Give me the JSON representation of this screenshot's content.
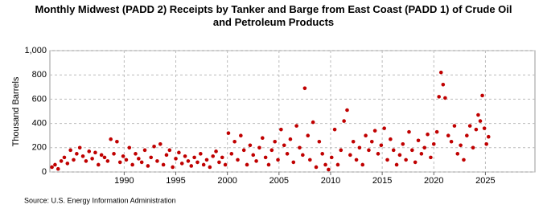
{
  "chart_data": {
    "type": "scatter",
    "title": "Monthly Midwest (PADD 2) Receipts by Tanker and Barge from East Coast (PADD 1) of Crude Oil and Petroleum Products",
    "y_label": "Thousand Barrels",
    "source": "Source: U.S. Energy Information Administration",
    "color": "#c00000",
    "grid": true,
    "xlim": [
      1982.8,
      2029.8
    ],
    "xticks": [
      1990,
      1995,
      2000,
      2005,
      2010,
      2015,
      2020,
      2025
    ],
    "ylim": [
      0,
      1000
    ],
    "yticks": [
      0,
      200,
      400,
      600,
      800,
      {
        "value": 1000,
        "label": "1,000"
      }
    ],
    "x": [
      1983.0,
      1983.3,
      1983.6,
      1983.9,
      1984.2,
      1984.5,
      1984.8,
      1985.1,
      1985.4,
      1985.7,
      1986.0,
      1986.3,
      1986.6,
      1986.9,
      1987.2,
      1987.5,
      1987.8,
      1988.1,
      1988.4,
      1988.7,
      1989.0,
      1989.3,
      1989.6,
      1989.9,
      1990.2,
      1990.5,
      1990.8,
      1991.1,
      1991.4,
      1991.7,
      1992.0,
      1992.3,
      1992.6,
      1992.9,
      1993.2,
      1993.5,
      1993.8,
      1994.1,
      1994.4,
      1994.7,
      1995.0,
      1995.3,
      1995.6,
      1995.9,
      1996.2,
      1996.5,
      1996.8,
      1997.1,
      1997.4,
      1997.7,
      1998.0,
      1998.3,
      1998.6,
      1998.9,
      1999.2,
      1999.5,
      1999.8,
      2000.1,
      2000.4,
      2000.7,
      2001.0,
      2001.3,
      2001.6,
      2001.9,
      2002.2,
      2002.5,
      2002.8,
      2003.1,
      2003.4,
      2003.7,
      2004.0,
      2004.3,
      2004.6,
      2004.9,
      2005.2,
      2005.5,
      2005.8,
      2006.1,
      2006.4,
      2006.7,
      2007.0,
      2007.3,
      2007.5,
      2007.8,
      2008.0,
      2008.3,
      2008.6,
      2008.9,
      2009.2,
      2009.5,
      2009.8,
      2010.1,
      2010.4,
      2010.7,
      2011.0,
      2011.3,
      2011.6,
      2011.9,
      2012.2,
      2012.5,
      2012.8,
      2013.1,
      2013.4,
      2013.7,
      2014.0,
      2014.3,
      2014.6,
      2014.9,
      2015.2,
      2015.5,
      2015.8,
      2016.1,
      2016.4,
      2016.7,
      2017.0,
      2017.3,
      2017.6,
      2017.9,
      2018.2,
      2018.5,
      2018.8,
      2019.1,
      2019.4,
      2019.7,
      2020.0,
      2020.3,
      2020.5,
      2020.7,
      2020.9,
      2021.1,
      2021.4,
      2021.7,
      2022.0,
      2022.3,
      2022.6,
      2022.9,
      2023.2,
      2023.5,
      2023.8,
      2024.1,
      2024.3,
      2024.5,
      2024.7,
      2024.9,
      2025.1,
      2025.3
    ],
    "values": [
      40,
      60,
      25,
      90,
      120,
      70,
      180,
      100,
      150,
      200,
      130,
      90,
      170,
      110,
      160,
      60,
      140,
      120,
      90,
      270,
      150,
      250,
      80,
      130,
      100,
      200,
      60,
      150,
      110,
      80,
      180,
      50,
      120,
      210,
      90,
      230,
      60,
      140,
      180,
      40,
      110,
      160,
      70,
      130,
      90,
      50,
      120,
      80,
      150,
      60,
      100,
      40,
      130,
      170,
      80,
      120,
      60,
      320,
      150,
      250,
      100,
      300,
      180,
      60,
      220,
      140,
      90,
      200,
      280,
      120,
      60,
      180,
      250,
      100,
      350,
      220,
      150,
      270,
      80,
      380,
      200,
      140,
      690,
      300,
      100,
      410,
      40,
      250,
      150,
      60,
      20,
      120,
      350,
      60,
      180,
      420,
      510,
      140,
      250,
      100,
      200,
      60,
      300,
      180,
      250,
      340,
      150,
      220,
      360,
      100,
      270,
      180,
      60,
      140,
      230,
      100,
      330,
      180,
      80,
      260,
      150,
      200,
      310,
      120,
      230,
      330,
      620,
      820,
      720,
      610,
      300,
      250,
      380,
      150,
      220,
      100,
      300,
      380,
      200,
      350,
      470,
      420,
      630,
      360,
      230,
      290
    ]
  }
}
